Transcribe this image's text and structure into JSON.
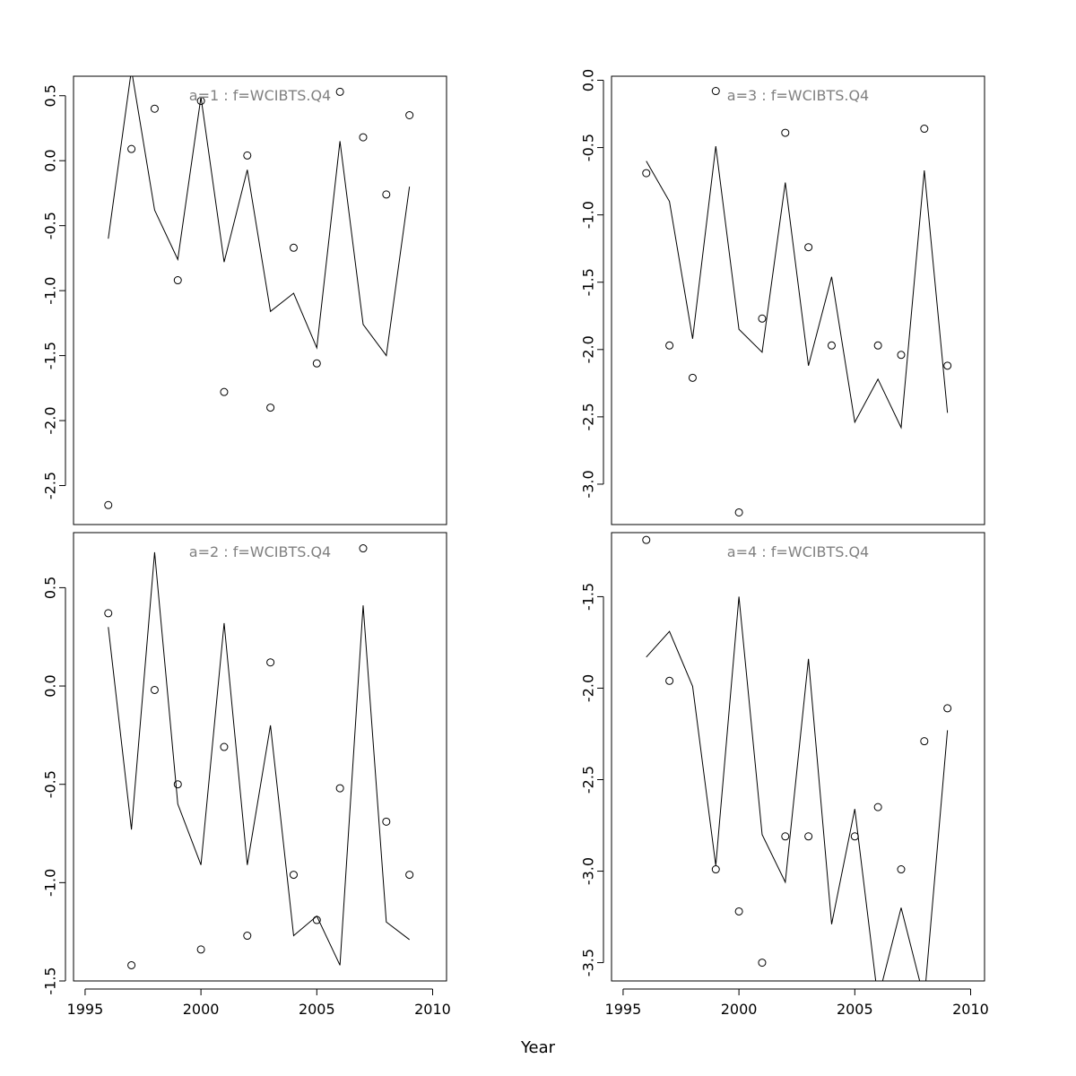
{
  "figure": {
    "xlabel": "Year",
    "x_ticks": [
      1995,
      2000,
      2005,
      2010
    ]
  },
  "chart_data": [
    {
      "type": "line",
      "panel_label": "a=1  :  f=WCIBTS.Q4",
      "xlim": [
        1994.5,
        2010.6
      ],
      "ylim": [
        -2.8,
        0.65
      ],
      "y_ticks": [
        0.5,
        0.0,
        -0.5,
        -1.0,
        -1.5,
        -2.0,
        -2.5
      ],
      "y_tick_labels": [
        "0.5",
        "0.0",
        "-0.5",
        "-1.0",
        "-1.5",
        "-2.0",
        "-2.5"
      ],
      "x": [
        1996,
        1997,
        1998,
        1999,
        2000,
        2001,
        2002,
        2003,
        2004,
        2005,
        2006,
        2007,
        2008,
        2009
      ],
      "series": [
        {
          "kind": "line",
          "values": [
            -0.6,
            0.7,
            -0.38,
            -0.76,
            0.49,
            -0.78,
            -0.07,
            -1.16,
            -1.02,
            -1.44,
            0.15,
            -1.26,
            -1.5,
            -0.2
          ]
        },
        {
          "kind": "points",
          "values": [
            -2.65,
            0.09,
            0.4,
            -0.92,
            0.46,
            -1.78,
            0.04,
            -1.9,
            -0.67,
            -1.56,
            0.53,
            0.18,
            -0.26,
            0.35
          ]
        }
      ]
    },
    {
      "type": "line",
      "panel_label": "a=3  :  f=WCIBTS.Q4",
      "xlim": [
        1994.5,
        2010.6
      ],
      "ylim": [
        -3.3,
        0.03
      ],
      "y_ticks": [
        0.0,
        -0.5,
        -1.0,
        -1.5,
        -2.0,
        -2.5,
        -3.0
      ],
      "y_tick_labels": [
        "0.0",
        "-0.5",
        "-1.0",
        "-1.5",
        "-2.0",
        "-2.5",
        "-3.0"
      ],
      "x": [
        1996,
        1997,
        1998,
        1999,
        2000,
        2001,
        2002,
        2003,
        2004,
        2005,
        2006,
        2007,
        2008,
        2009
      ],
      "series": [
        {
          "kind": "line",
          "values": [
            -0.6,
            -0.9,
            -1.92,
            -0.49,
            -1.85,
            -2.02,
            -0.76,
            -2.12,
            -1.46,
            -2.54,
            -2.22,
            -2.58,
            -0.67,
            -2.47
          ]
        },
        {
          "kind": "points",
          "values": [
            -0.69,
            -1.97,
            -2.21,
            -0.08,
            -3.21,
            -1.77,
            -0.39,
            -1.24,
            -1.97,
            null,
            -1.97,
            -2.04,
            -0.36,
            -2.12
          ]
        }
      ]
    },
    {
      "type": "line",
      "panel_label": "a=2  :  f=WCIBTS.Q4",
      "xlim": [
        1994.5,
        2010.6
      ],
      "ylim": [
        -1.5,
        0.78
      ],
      "y_ticks": [
        0.5,
        0.0,
        -0.5,
        -1.0,
        -1.5
      ],
      "y_tick_labels": [
        "0.5",
        "0.0",
        "-0.5",
        "-1.0",
        "-1.5"
      ],
      "x": [
        1996,
        1997,
        1998,
        1999,
        2000,
        2001,
        2002,
        2003,
        2004,
        2005,
        2006,
        2007,
        2008,
        2009
      ],
      "series": [
        {
          "kind": "line",
          "values": [
            0.3,
            -0.73,
            0.68,
            -0.6,
            -0.91,
            0.32,
            -0.91,
            -0.2,
            -1.27,
            -1.17,
            -1.42,
            0.41,
            -1.2,
            -1.29
          ]
        },
        {
          "kind": "points",
          "values": [
            0.37,
            -1.42,
            -0.02,
            -0.5,
            -1.34,
            -0.31,
            -1.27,
            0.12,
            -0.96,
            -1.19,
            -0.52,
            0.7,
            -0.69,
            -0.96
          ]
        }
      ]
    },
    {
      "type": "line",
      "panel_label": "a=4  :  f=WCIBTS.Q4",
      "xlim": [
        1994.5,
        2010.6
      ],
      "ylim": [
        -3.6,
        -1.15
      ],
      "y_ticks": [
        -1.5,
        -2.0,
        -2.5,
        -3.0,
        -3.5
      ],
      "y_tick_labels": [
        "-1.5",
        "-2.0",
        "-2.5",
        "-3.0",
        "-3.5"
      ],
      "x": [
        1996,
        1997,
        1998,
        1999,
        2000,
        2001,
        2002,
        2003,
        2004,
        2005,
        2006,
        2007,
        2008,
        2009
      ],
      "series": [
        {
          "kind": "line",
          "values": [
            -1.83,
            -1.69,
            -1.99,
            -2.97,
            -1.5,
            -2.8,
            -3.06,
            -1.84,
            -3.29,
            -2.66,
            -3.7,
            -3.2,
            -3.7,
            -2.23
          ]
        },
        {
          "kind": "points",
          "values": [
            -1.19,
            -1.96,
            null,
            -2.99,
            -3.22,
            -3.5,
            -2.81,
            -2.81,
            null,
            -2.81,
            -2.65,
            -2.99,
            -2.29,
            -2.11
          ]
        }
      ]
    }
  ]
}
